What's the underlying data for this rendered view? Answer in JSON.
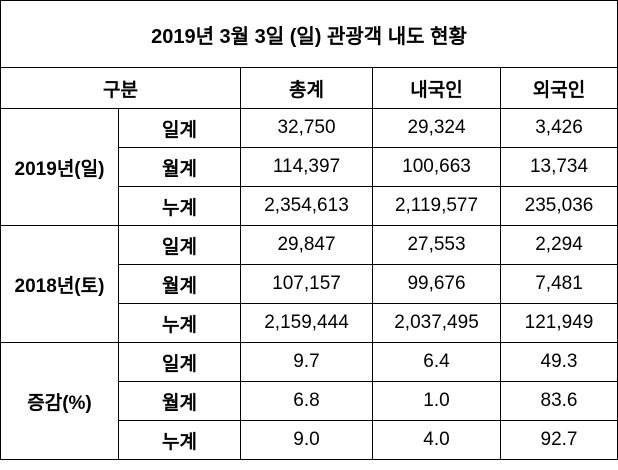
{
  "title": "2019년 3월 3일 (일) 관광객 내도 현황",
  "table": {
    "header": [
      "구분",
      "총계",
      "내국인",
      "외국인"
    ],
    "groups": [
      {
        "label": "2019년(일)",
        "rows": [
          {
            "label": "일계",
            "values": [
              "32,750",
              "29,324",
              "3,426"
            ]
          },
          {
            "label": "월계",
            "values": [
              "114,397",
              "100,663",
              "13,734"
            ]
          },
          {
            "label": "누계",
            "values": [
              "2,354,613",
              "2,119,577",
              "235,036"
            ]
          }
        ]
      },
      {
        "label": "2018년(토)",
        "rows": [
          {
            "label": "일계",
            "values": [
              "29,847",
              "27,553",
              "2,294"
            ]
          },
          {
            "label": "월계",
            "values": [
              "107,157",
              "99,676",
              "7,481"
            ]
          },
          {
            "label": "누계",
            "values": [
              "2,159,444",
              "2,037,495",
              "121,949"
            ]
          }
        ]
      },
      {
        "label": "증감(%)",
        "rows": [
          {
            "label": "일계",
            "values": [
              "9.7",
              "6.4",
              "49.3"
            ]
          },
          {
            "label": "월계",
            "values": [
              "6.8",
              "1.0",
              "83.6"
            ]
          },
          {
            "label": "누계",
            "values": [
              "9.0",
              "4.0",
              "92.7"
            ]
          }
        ]
      }
    ]
  }
}
